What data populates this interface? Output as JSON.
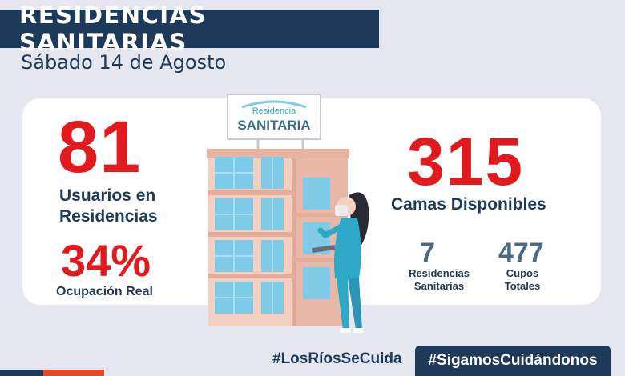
{
  "header": {
    "title": "RESIDENCIAS SANITARIAS",
    "date": "Sábado 14 de Agosto"
  },
  "stats": {
    "users": {
      "value": "81",
      "label_line1": "Usuarios en",
      "label_line2": "Residencias"
    },
    "occupancy": {
      "value": "34%",
      "label": "Ocupación Real"
    },
    "beds": {
      "value": "315",
      "label": "Camas Disponibles"
    },
    "residences": {
      "value": "7",
      "label_line1": "Residencias",
      "label_line2": "Sanitarias"
    },
    "slots": {
      "value": "477",
      "label_line1": "Cupos",
      "label_line2": "Totales"
    }
  },
  "sign": {
    "top": "Residencia",
    "bottom": "SANITARIA"
  },
  "hashtags": {
    "primary": "#LosRíosSeCuida",
    "secondary": "#SigamosCuidándonos"
  },
  "colors": {
    "navy": "#1d3a5a",
    "red": "#e01a1d",
    "background": "#e6e6f1",
    "building": "#f1c7b6",
    "window": "#7fcbe7",
    "scrubs": "#2fa7c7"
  },
  "icons": [
    "building-illustration",
    "nurse-illustration",
    "residencia-sign"
  ]
}
